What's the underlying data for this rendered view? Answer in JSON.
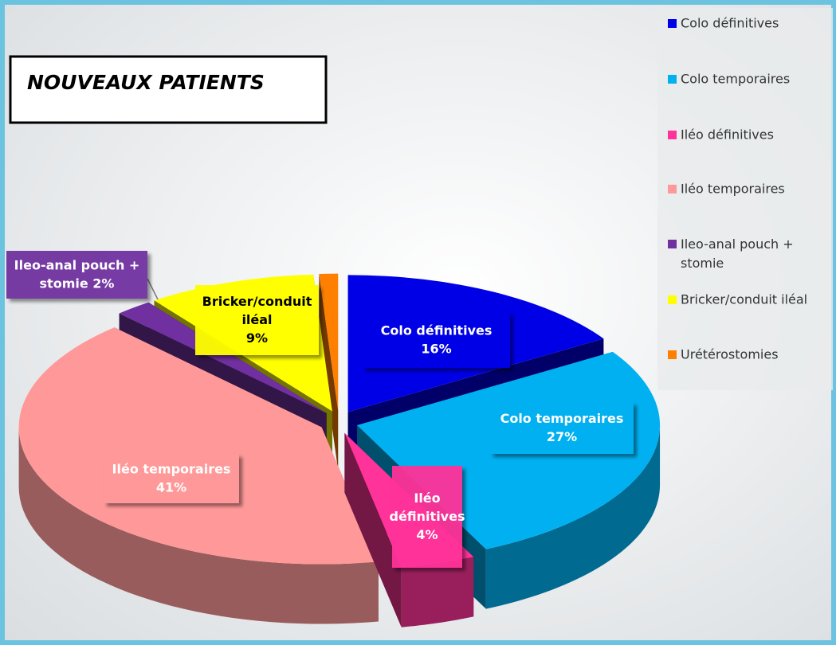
{
  "chart_data": {
    "type": "pie3d",
    "title": "NOUVEAUX PATIENTS",
    "categories": [
      "Colo définitives",
      "Colo temporaires",
      "Iléo définitives",
      "Iléo temporaires",
      "Ileo-anal pouch + stomie",
      "Bricker/conduit iléal",
      "Urétérostomies"
    ],
    "values": [
      16,
      27,
      4,
      41,
      2,
      9,
      1
    ],
    "value_labels": [
      "16%",
      "27%",
      "4%",
      "41%",
      "2%",
      "9%",
      null
    ],
    "colors": [
      "#0000e6",
      "#00b0f0",
      "#ff3399",
      "#ff9999",
      "#7030a0",
      "#ffff00",
      "#ff8000"
    ],
    "legend": "right"
  }
}
